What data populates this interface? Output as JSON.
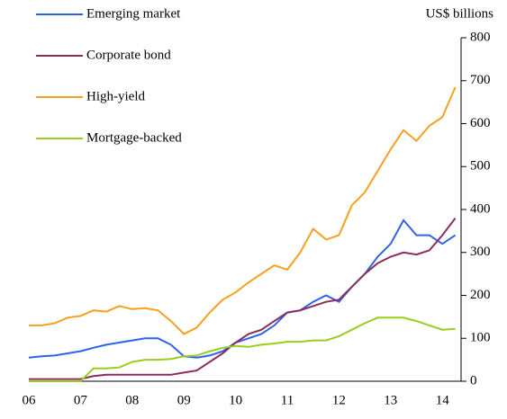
{
  "chart_data": {
    "type": "line",
    "y_axis_label": "US$ billions",
    "categories": [
      "06",
      null,
      null,
      null,
      "07",
      null,
      null,
      null,
      "08",
      null,
      null,
      null,
      "09",
      null,
      null,
      null,
      "10",
      null,
      null,
      null,
      "11",
      null,
      null,
      null,
      "12",
      null,
      null,
      null,
      "13",
      null,
      null,
      null,
      "14",
      null
    ],
    "series": [
      {
        "name": "Emerging market",
        "color": "#2e62e8",
        "values": [
          55,
          58,
          60,
          65,
          70,
          78,
          85,
          90,
          95,
          100,
          100,
          85,
          58,
          55,
          60,
          70,
          90,
          100,
          110,
          130,
          160,
          165,
          185,
          200,
          185,
          220,
          250,
          290,
          320,
          375,
          340,
          340,
          320,
          340
        ]
      },
      {
        "name": "Corporate bond",
        "color": "#8b2c5c",
        "values": [
          5,
          5,
          5,
          5,
          5,
          12,
          15,
          15,
          15,
          15,
          15,
          15,
          20,
          25,
          45,
          65,
          90,
          110,
          120,
          140,
          160,
          165,
          175,
          185,
          190,
          220,
          250,
          275,
          290,
          300,
          295,
          305,
          340,
          380
        ]
      },
      {
        "name": "High-yield",
        "color": "#f5a020",
        "values": [
          130,
          130,
          135,
          148,
          152,
          165,
          162,
          175,
          168,
          170,
          165,
          140,
          110,
          125,
          160,
          190,
          207,
          230,
          250,
          270,
          260,
          300,
          355,
          330,
          340,
          410,
          440,
          490,
          540,
          585,
          560,
          595,
          615,
          685
        ]
      },
      {
        "name": "Mortgage-backed",
        "color": "#9acd1e",
        "values": [
          0,
          0,
          0,
          0,
          0,
          30,
          30,
          32,
          45,
          50,
          50,
          52,
          58,
          60,
          70,
          78,
          82,
          80,
          85,
          88,
          92,
          92,
          95,
          95,
          105,
          120,
          135,
          148,
          148,
          148,
          140,
          130,
          120,
          122
        ]
      }
    ],
    "ylim": [
      0,
      800
    ],
    "yticks": [
      0,
      100,
      200,
      300,
      400,
      500,
      600,
      700,
      800
    ],
    "legend": "upper left"
  }
}
